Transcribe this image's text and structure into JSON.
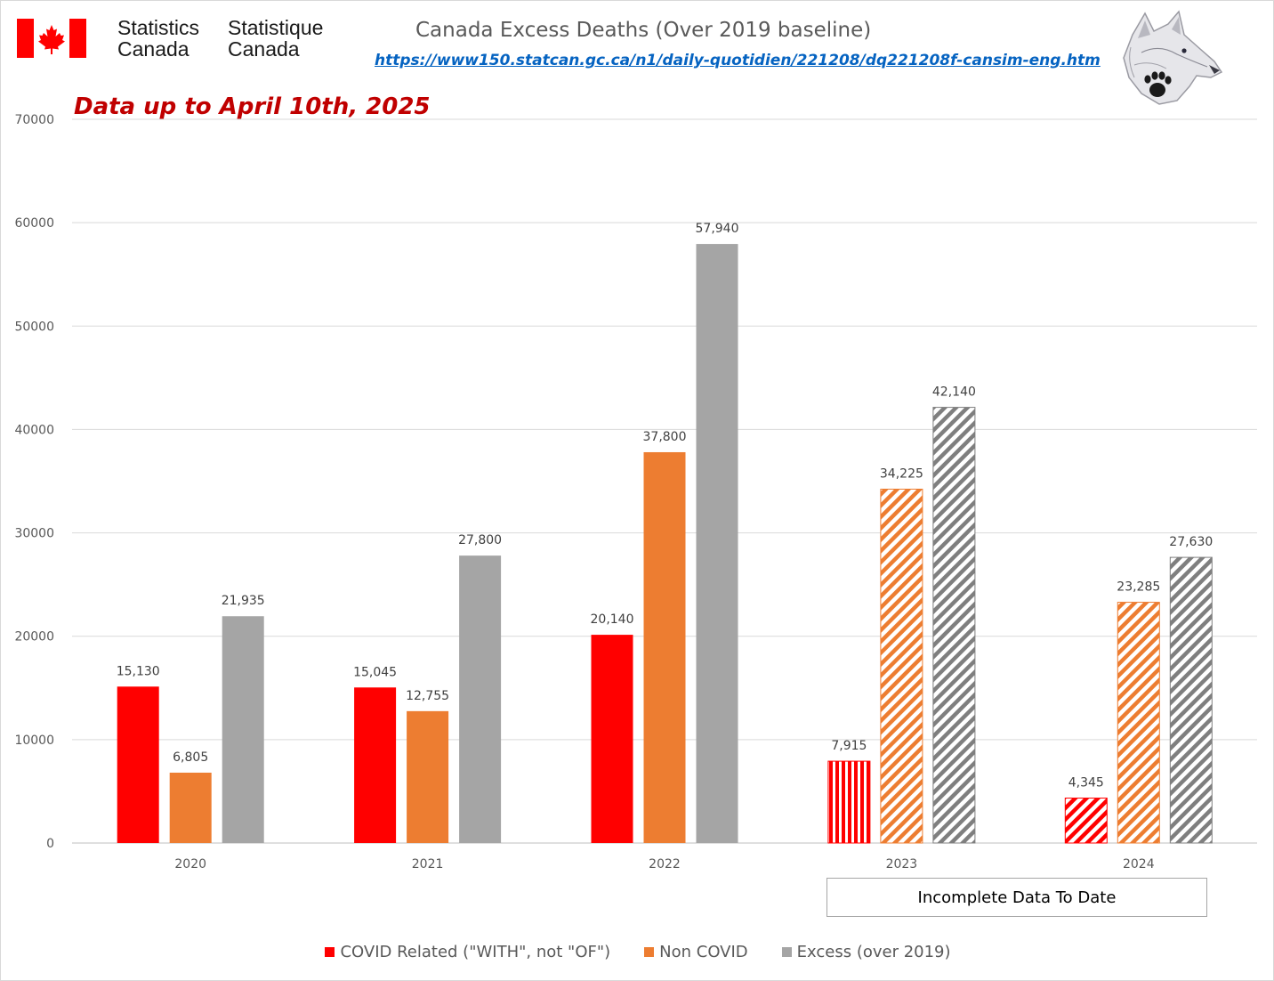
{
  "header": {
    "org_en_line1": "Statistics",
    "org_en_line2": "Canada",
    "org_fr_line1": "Statistique",
    "org_fr_line2": "Canada",
    "source_url": "https://www150.statcan.gc.ca/n1/daily-quotidien/221208/dq221208f-cansim-eng.htm"
  },
  "colors": {
    "covid": "#ff0000",
    "non_covid": "#ed7d31",
    "excess": "#a5a5a5",
    "subtitle": "#c00000",
    "link": "#0563c1",
    "flag_red": "#ff0000"
  },
  "icons": {
    "flag": "canada-flag-icon",
    "wolf": "wolf-head-paw-icon"
  },
  "chart_data": {
    "type": "bar",
    "title": "Canada Excess Deaths (Over 2019 baseline)",
    "subtitle": "Data up to April 10th, 2025",
    "xlabel": "",
    "ylabel": "",
    "categories": [
      "2020",
      "2021",
      "2022",
      "2023",
      "2024"
    ],
    "ylim": [
      0,
      70000
    ],
    "yticks": [
      0,
      10000,
      20000,
      30000,
      40000,
      50000,
      60000,
      70000
    ],
    "grid": true,
    "legend_position": "bottom",
    "hatched_categories": [
      "2023",
      "2024"
    ],
    "series": [
      {
        "name": "COVID Related (\"WITH\", not \"OF\")",
        "values": [
          15130,
          15045,
          20140,
          7915,
          4345
        ],
        "labels": [
          "15,130",
          "15,045",
          "20,140",
          "7,915",
          "4,345"
        ]
      },
      {
        "name": "Non COVID",
        "values": [
          6805,
          12755,
          37800,
          34225,
          23285
        ],
        "labels": [
          "6,805",
          "12,755",
          "37,800",
          "34,225",
          "23,285"
        ]
      },
      {
        "name": "Excess (over 2019)",
        "values": [
          21935,
          27800,
          57940,
          42140,
          27630
        ],
        "labels": [
          "21,935",
          "27,800",
          "57,940",
          "42,140",
          "27,630"
        ]
      }
    ],
    "annotation": "Incomplete Data To Date"
  }
}
